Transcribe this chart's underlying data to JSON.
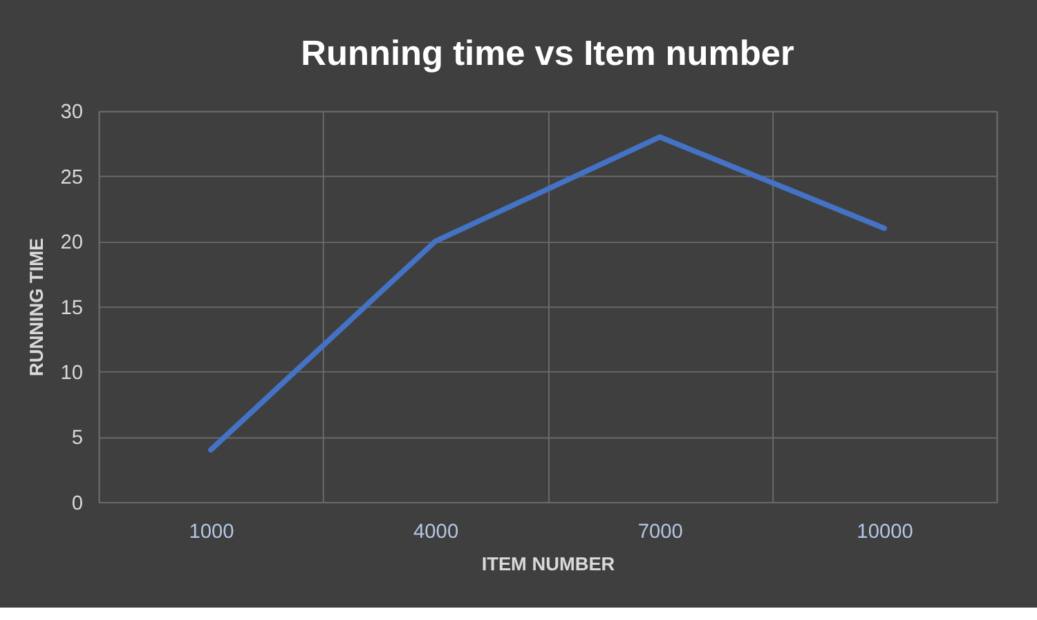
{
  "chart_data": {
    "type": "line",
    "title": "Running time vs Item number",
    "xlabel": "ITEM NUMBER",
    "ylabel": "RUNNING TIME",
    "categories": [
      "1000",
      "4000",
      "7000",
      "10000"
    ],
    "series": [
      {
        "color": "#4472c4",
        "values": [
          4,
          20,
          28,
          21
        ]
      }
    ],
    "ylim": [
      0,
      30
    ],
    "yticks": [
      0,
      5,
      10,
      15,
      20,
      25,
      30
    ],
    "grid": true,
    "marker": "none",
    "line_style": "solid"
  }
}
